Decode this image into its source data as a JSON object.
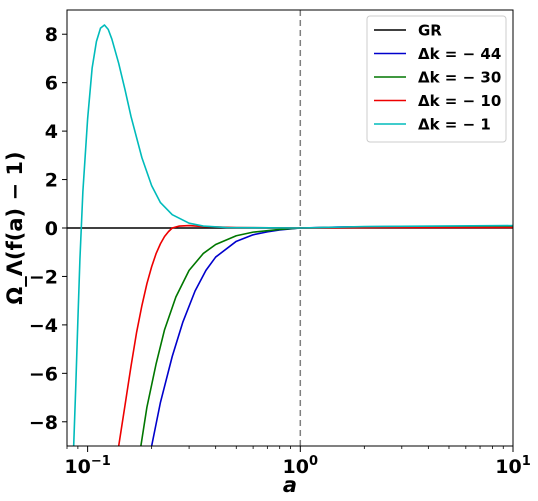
{
  "chart_data": {
    "type": "line",
    "xlabel": "a",
    "ylabel": "Ω_Λ(f(a) − 1)",
    "xscale": "log",
    "xlim": [
      0.08,
      10
    ],
    "ylim": [
      -9,
      9
    ],
    "x_ticks": [
      {
        "value": 0.1,
        "base": "10",
        "exp": "−1"
      },
      {
        "value": 1,
        "base": "10",
        "exp": "0"
      },
      {
        "value": 10,
        "base": "10",
        "exp": "1"
      }
    ],
    "y_ticks": [
      -8,
      -6,
      -4,
      -2,
      0,
      2,
      4,
      6,
      8
    ],
    "y_tick_labels": [
      "−8",
      "−6",
      "−4",
      "−2",
      "0",
      "2",
      "4",
      "6",
      "8"
    ],
    "reference_line": {
      "x": 1,
      "style": "dashed",
      "color": "#808080"
    },
    "grid": false,
    "legend_position": "top-right",
    "series": [
      {
        "name": "GR",
        "color": "#000000",
        "points": [
          [
            0.08,
            0
          ],
          [
            0.2,
            0
          ],
          [
            0.5,
            0
          ],
          [
            1,
            0
          ],
          [
            3,
            0
          ],
          [
            10,
            0
          ]
        ]
      },
      {
        "name": "Δk = − 44",
        "name_prefix": "Δk = ",
        "name_value": "− 44",
        "color": "#0000cc",
        "points": [
          [
            0.2,
            -9
          ],
          [
            0.22,
            -7.2
          ],
          [
            0.25,
            -5.3
          ],
          [
            0.28,
            -3.9
          ],
          [
            0.32,
            -2.6
          ],
          [
            0.36,
            -1.75
          ],
          [
            0.4,
            -1.2
          ],
          [
            0.5,
            -0.55
          ],
          [
            0.6,
            -0.28
          ],
          [
            0.7,
            -0.16
          ],
          [
            0.8,
            -0.08
          ],
          [
            1,
            0
          ],
          [
            1.5,
            0.04
          ],
          [
            2,
            0.05
          ],
          [
            3,
            0.06
          ],
          [
            10,
            0.06
          ]
        ]
      },
      {
        "name": "Δk = − 30",
        "name_prefix": "Δk = ",
        "name_value": "− 30",
        "color": "#007700",
        "points": [
          [
            0.178,
            -9
          ],
          [
            0.19,
            -7.4
          ],
          [
            0.21,
            -5.6
          ],
          [
            0.23,
            -4.2
          ],
          [
            0.26,
            -2.85
          ],
          [
            0.3,
            -1.75
          ],
          [
            0.35,
            -1.05
          ],
          [
            0.4,
            -0.68
          ],
          [
            0.5,
            -0.32
          ],
          [
            0.6,
            -0.17
          ],
          [
            0.8,
            -0.06
          ],
          [
            1,
            0
          ],
          [
            1.5,
            0.03
          ],
          [
            3,
            0.05
          ],
          [
            10,
            0.05
          ]
        ]
      },
      {
        "name": "Δk = − 10",
        "name_prefix": "Δk = ",
        "name_value": "− 10",
        "color": "#ee0000",
        "points": [
          [
            0.14,
            -9
          ],
          [
            0.15,
            -7.3
          ],
          [
            0.16,
            -5.7
          ],
          [
            0.17,
            -4.3
          ],
          [
            0.18,
            -3.2
          ],
          [
            0.19,
            -2.3
          ],
          [
            0.2,
            -1.6
          ],
          [
            0.21,
            -1.05
          ],
          [
            0.22,
            -0.65
          ],
          [
            0.23,
            -0.35
          ],
          [
            0.24,
            -0.15
          ],
          [
            0.25,
            0
          ],
          [
            0.27,
            0.08
          ],
          [
            0.3,
            0.1
          ],
          [
            0.35,
            0.06
          ],
          [
            0.5,
            0.02
          ],
          [
            1,
            0
          ],
          [
            3,
            0.02
          ],
          [
            10,
            0.02
          ]
        ]
      },
      {
        "name": "Δk = − 1",
        "name_prefix": "Δk = ",
        "name_value": "− 1",
        "color": "#00bbbb",
        "points": [
          [
            0.086,
            -9
          ],
          [
            0.088,
            -6.5
          ],
          [
            0.09,
            -3.8
          ],
          [
            0.092,
            -1.3
          ],
          [
            0.095,
            1.5
          ],
          [
            0.1,
            4.5
          ],
          [
            0.105,
            6.6
          ],
          [
            0.11,
            7.7
          ],
          [
            0.115,
            8.25
          ],
          [
            0.12,
            8.38
          ],
          [
            0.125,
            8.2
          ],
          [
            0.13,
            7.8
          ],
          [
            0.14,
            6.8
          ],
          [
            0.15,
            5.7
          ],
          [
            0.16,
            4.6
          ],
          [
            0.18,
            2.9
          ],
          [
            0.2,
            1.75
          ],
          [
            0.22,
            1.05
          ],
          [
            0.25,
            0.55
          ],
          [
            0.3,
            0.2
          ],
          [
            0.35,
            0.08
          ],
          [
            0.45,
            0.02
          ],
          [
            1,
            0
          ],
          [
            2,
            0.06
          ],
          [
            10,
            0.1
          ]
        ]
      }
    ]
  }
}
